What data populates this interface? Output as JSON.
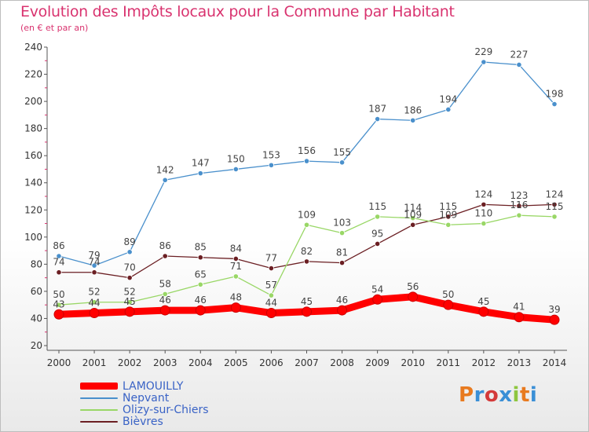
{
  "header": {
    "title": "Evolution des Impôts locaux pour la Commune par Habitant",
    "subtitle": "(en € et par an)"
  },
  "logo": {
    "text": "Proxiti",
    "colors": [
      "#e87a1f",
      "#3a8fd6",
      "#d43a3a",
      "#3a8fd6",
      "#8ec63f",
      "#e87a1f",
      "#3a8fd6"
    ]
  },
  "chart_data": {
    "type": "line",
    "x": [
      "2000",
      "2001",
      "2002",
      "2003",
      "2004",
      "2005",
      "2006",
      "2007",
      "2008",
      "2009",
      "2010",
      "2011",
      "2012",
      "2013",
      "2014"
    ],
    "ylim": [
      20,
      240
    ],
    "yticks": [
      20,
      40,
      60,
      80,
      100,
      120,
      140,
      160,
      180,
      200,
      220,
      240
    ],
    "grid": false,
    "legend_position": "bottom-left",
    "series": [
      {
        "name": "LAMOUILLY",
        "color": "#ff0000",
        "values": [
          43,
          44,
          45,
          46,
          46,
          48,
          44,
          45,
          46,
          54,
          56,
          50,
          45,
          41,
          39
        ]
      },
      {
        "name": "Nepvant",
        "color": "#4a90cc",
        "values": [
          86,
          79,
          89,
          142,
          147,
          150,
          153,
          156,
          155,
          187,
          186,
          194,
          229,
          227,
          198
        ]
      },
      {
        "name": "Olizy-sur-Chiers",
        "color": "#99d766",
        "values": [
          50,
          52,
          52,
          58,
          65,
          71,
          57,
          109,
          103,
          115,
          114,
          109,
          110,
          116,
          115
        ]
      },
      {
        "name": "Bièvres",
        "color": "#6b1f23",
        "values": [
          74,
          74,
          70,
          86,
          85,
          84,
          77,
          82,
          81,
          95,
          109,
          115,
          124,
          123,
          124
        ]
      }
    ]
  }
}
